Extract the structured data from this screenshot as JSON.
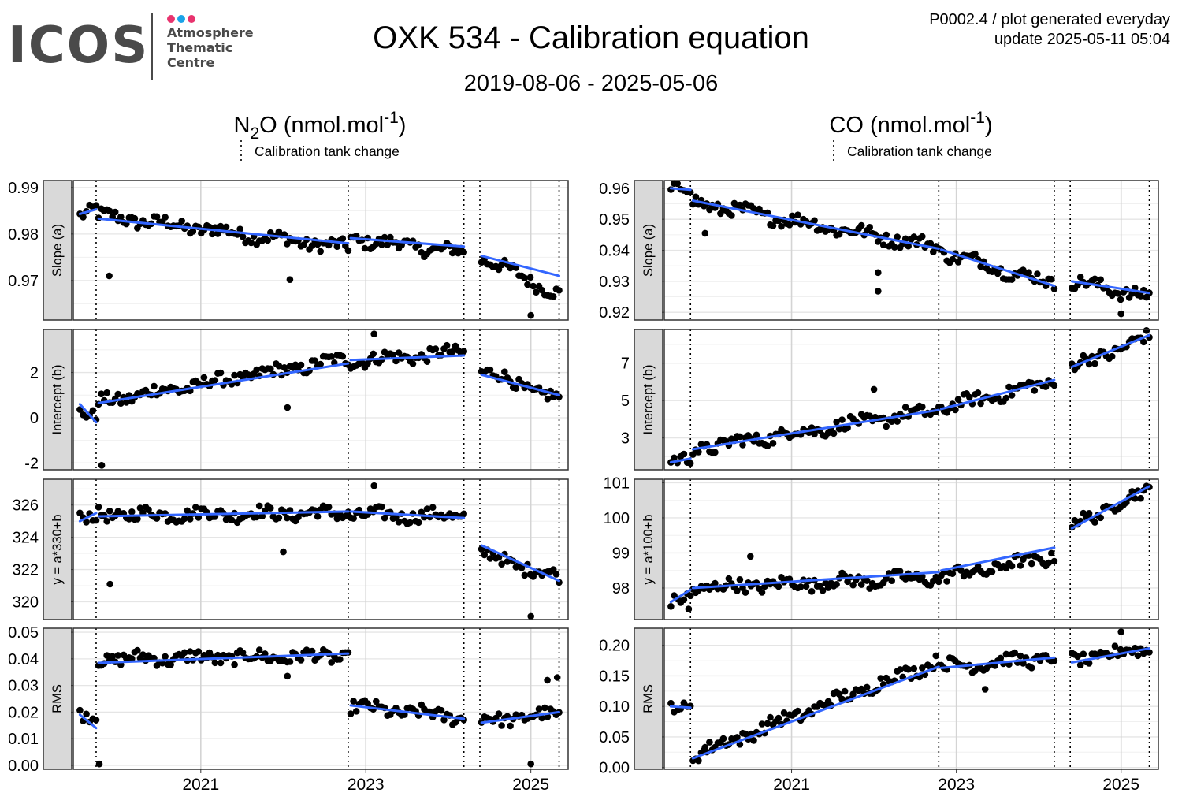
{
  "logo": {
    "text": "ICOS",
    "subtitle_lines": [
      "Atmosphere",
      "Thematic",
      "Centre"
    ],
    "dot_colors": [
      "#e8336e",
      "#1aa3e8",
      "#e8336e"
    ]
  },
  "title": "OXK 534 - Calibration equation",
  "date_range": "2019-08-06 - 2025-05-06",
  "meta": {
    "line1": "P0002.4 / plot generated everyday",
    "line2": "update  2025-05-11 05:04"
  },
  "colors": {
    "points": "#000000",
    "fit": "#3366ff",
    "strip": "#d9d9d9",
    "grid": "#e5e5e5"
  },
  "chart_data": [
    {
      "type": "scatter",
      "title": "N2O (nmol.mol-1)",
      "title_parts": {
        "base": "N",
        "sub": "2",
        "mid": "O (nmol.mol",
        "sup": "-1",
        "end": ")"
      },
      "legend": "Calibration tank change",
      "x_tick_labels": [
        "2021",
        "2023",
        "2025"
      ],
      "xlim": [
        "2019-06-16",
        "2025-06-15"
      ],
      "tank_changes": [
        "2019-09-25",
        "2022-10-15",
        "2024-03-10",
        "2024-05-20",
        "2025-05-06"
      ],
      "panels": [
        {
          "label": "Slope (a)",
          "ylim": [
            0.9615,
            0.9915
          ],
          "ticks": [
            0.97,
            0.98,
            0.99
          ],
          "tick_labels": [
            "0.97",
            "0.98",
            "0.99"
          ],
          "minor": [
            0.965,
            0.975,
            0.985
          ],
          "seg_ranges": [
            [
              0.9845,
              0.9855
            ],
            [
              0.984,
              0.977
            ],
            [
              0.979,
              0.976
            ],
            [
              0.975,
              0.967
            ]
          ],
          "fit": [
            [
              0.9843,
              0.9853
            ],
            [
              0.9833,
              0.978
            ],
            [
              0.9791,
              0.9773
            ],
            [
              0.9753,
              0.971
            ]
          ],
          "outliers": [
            [
              2019.89,
              0.971
            ],
            [
              2022.08,
              0.9702
            ],
            [
              2025.0,
              0.9625
            ]
          ]
        },
        {
          "label": "Intercept (b)",
          "ylim": [
            -2.3,
            3.9
          ],
          "ticks": [
            -2,
            0,
            2
          ],
          "tick_labels": [
            "-2",
            "0",
            "2"
          ],
          "minor": [
            -1,
            1,
            3
          ],
          "seg_ranges": [
            [
              0.3,
              -0.1
            ],
            [
              0.7,
              2.6
            ],
            [
              2.5,
              2.9
            ],
            [
              2.1,
              0.8
            ]
          ],
          "fit": [
            [
              0.6,
              -0.2
            ],
            [
              0.65,
              2.4
            ],
            [
              2.55,
              2.75
            ],
            [
              1.9,
              1.0
            ]
          ],
          "outliers": [
            [
              2019.8,
              -2.1
            ],
            [
              2022.05,
              0.45
            ],
            [
              2023.1,
              3.7
            ]
          ]
        },
        {
          "label": "y = a*330+b",
          "ylim": [
            318.9,
            327.6
          ],
          "ticks": [
            320,
            322,
            324,
            326
          ],
          "tick_labels": [
            "320",
            "322",
            "324",
            "326"
          ],
          "minor": [
            321,
            323,
            325,
            327
          ],
          "seg_ranges": [
            [
              325.1,
              325.2
            ],
            [
              325.4,
              325.5
            ],
            [
              325.4,
              325.3
            ],
            [
              323.0,
              321.5
            ]
          ],
          "fit": [
            [
              325.0,
              325.5
            ],
            [
              325.3,
              325.6
            ],
            [
              325.6,
              325.2
            ],
            [
              323.5,
              321.3
            ]
          ],
          "outliers": [
            [
              2019.9,
              321.1
            ],
            [
              2022.0,
              323.1
            ],
            [
              2025.0,
              319.1
            ],
            [
              2023.1,
              327.2
            ]
          ]
        },
        {
          "label": "RMS",
          "ylim": [
            -0.0015,
            0.0515
          ],
          "ticks": [
            0.0,
            0.01,
            0.02,
            0.03,
            0.04,
            0.05
          ],
          "tick_labels": [
            "0.00",
            "0.01",
            "0.02",
            "0.03",
            "0.04",
            "0.05"
          ],
          "minor": [],
          "seg_ranges": [
            [
              0.018,
              0.018
            ],
            [
              0.04,
              0.041
            ],
            [
              0.022,
              0.018
            ],
            [
              0.017,
              0.019
            ]
          ],
          "fit": [
            [
              0.019,
              0.014
            ],
            [
              0.0385,
              0.042
            ],
            [
              0.0225,
              0.0175
            ],
            [
              0.016,
              0.02
            ]
          ],
          "outliers": [
            [
              2019.77,
              0.0005
            ],
            [
              2025.0,
              0.0005
            ],
            [
              2025.2,
              0.032
            ],
            [
              2025.32,
              0.033
            ],
            [
              2022.05,
              0.0335
            ]
          ]
        }
      ]
    },
    {
      "type": "scatter",
      "title": "CO (nmol.mol-1)",
      "title_parts": {
        "base": "CO (nmol.mol",
        "sub": "",
        "mid": "",
        "sup": "-1",
        "end": ")"
      },
      "legend": "Calibration tank change",
      "x_tick_labels": [
        "2021",
        "2023",
        "2025"
      ],
      "xlim": [
        "2019-06-16",
        "2025-06-15"
      ],
      "tank_changes": [
        "2019-10-10",
        "2022-10-15",
        "2024-03-10",
        "2024-05-20",
        "2025-05-06"
      ],
      "panels": [
        {
          "label": "Slope (a)",
          "ylim": [
            0.9175,
            0.9625
          ],
          "ticks": [
            0.92,
            0.93,
            0.94,
            0.95,
            0.96
          ],
          "tick_labels": [
            "0.92",
            "0.93",
            "0.94",
            "0.95",
            "0.96"
          ],
          "minor": [
            0.925,
            0.935,
            0.945,
            0.955
          ],
          "seg_ranges": [
            [
              0.9598,
              0.9595
            ],
            [
              0.9555,
              0.941
            ],
            [
              0.9395,
              0.929
            ],
            [
              0.93,
              0.925
            ]
          ],
          "fit": [
            [
              0.96,
              0.9595
            ],
            [
              0.956,
              0.9405
            ],
            [
              0.9402,
              0.9285
            ],
            [
              0.93,
              0.9262
            ]
          ],
          "outliers": [
            [
              2019.95,
              0.9455
            ],
            [
              2022.05,
              0.9328
            ],
            [
              2022.05,
              0.9268
            ],
            [
              2025.0,
              0.9195
            ]
          ]
        },
        {
          "label": "Intercept (b)",
          "ylim": [
            1.3,
            8.8
          ],
          "ticks": [
            3,
            5,
            7
          ],
          "tick_labels": [
            "3",
            "5",
            "7"
          ],
          "minor": [
            2,
            4,
            6,
            8
          ],
          "seg_ranges": [
            [
              1.7,
              1.8
            ],
            [
              2.4,
              4.5
            ],
            [
              4.6,
              6.0
            ],
            [
              6.8,
              8.4
            ]
          ],
          "fit": [
            [
              1.7,
              1.9
            ],
            [
              2.4,
              4.5
            ],
            [
              4.55,
              6.1
            ],
            [
              6.8,
              8.5
            ]
          ],
          "outliers": [
            [
              2022.0,
              5.6
            ]
          ]
        },
        {
          "label": "y = a*100+b",
          "ylim": [
            97.1,
            101.1
          ],
          "ticks": [
            98,
            99,
            100,
            101
          ],
          "tick_labels": [
            "98",
            "99",
            "100",
            "101"
          ],
          "minor": [
            97.5,
            98.5,
            99.5,
            100.5
          ],
          "seg_ranges": [
            [
              97.5,
              97.8
            ],
            [
              98.0,
              98.3
            ],
            [
              98.3,
              98.9
            ],
            [
              99.8,
              100.8
            ]
          ],
          "fit": [
            [
              97.6,
              97.95
            ],
            [
              98.0,
              98.45
            ],
            [
              98.5,
              99.15
            ],
            [
              99.7,
              100.9
            ]
          ],
          "outliers": [
            [
              2019.75,
              97.4
            ],
            [
              2020.5,
              98.9
            ]
          ]
        },
        {
          "label": "RMS",
          "ylim": [
            -0.003,
            0.228
          ],
          "ticks": [
            0.0,
            0.05,
            0.1,
            0.15,
            0.2
          ],
          "tick_labels": [
            "0.00",
            "0.05",
            "0.10",
            "0.15",
            "0.20"
          ],
          "minor": [
            0.025,
            0.075,
            0.125,
            0.175
          ],
          "seg_ranges": [
            [
              0.1,
              0.1
            ],
            [
              0.02,
              0.175
            ],
            [
              0.165,
              0.18
            ],
            [
              0.175,
              0.195
            ]
          ],
          "fit": [
            [
              0.1,
              0.098
            ],
            [
              0.015,
              0.165
            ],
            [
              0.163,
              0.18
            ],
            [
              0.172,
              0.195
            ]
          ],
          "outliers": [
            [
              2019.95,
              0.033
            ],
            [
              2023.35,
              0.128
            ],
            [
              2025.0,
              0.222
            ]
          ]
        }
      ]
    }
  ]
}
